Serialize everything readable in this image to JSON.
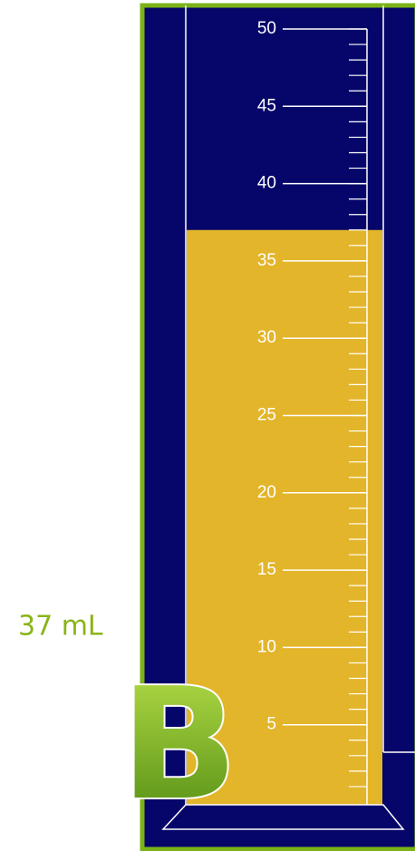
{
  "reading": "37 mL",
  "letter": "B",
  "cylinder": {
    "level": 37,
    "range": [
      0,
      50
    ],
    "ticks": [
      5,
      10,
      15,
      20,
      25,
      30,
      35,
      40,
      45,
      50
    ]
  }
}
